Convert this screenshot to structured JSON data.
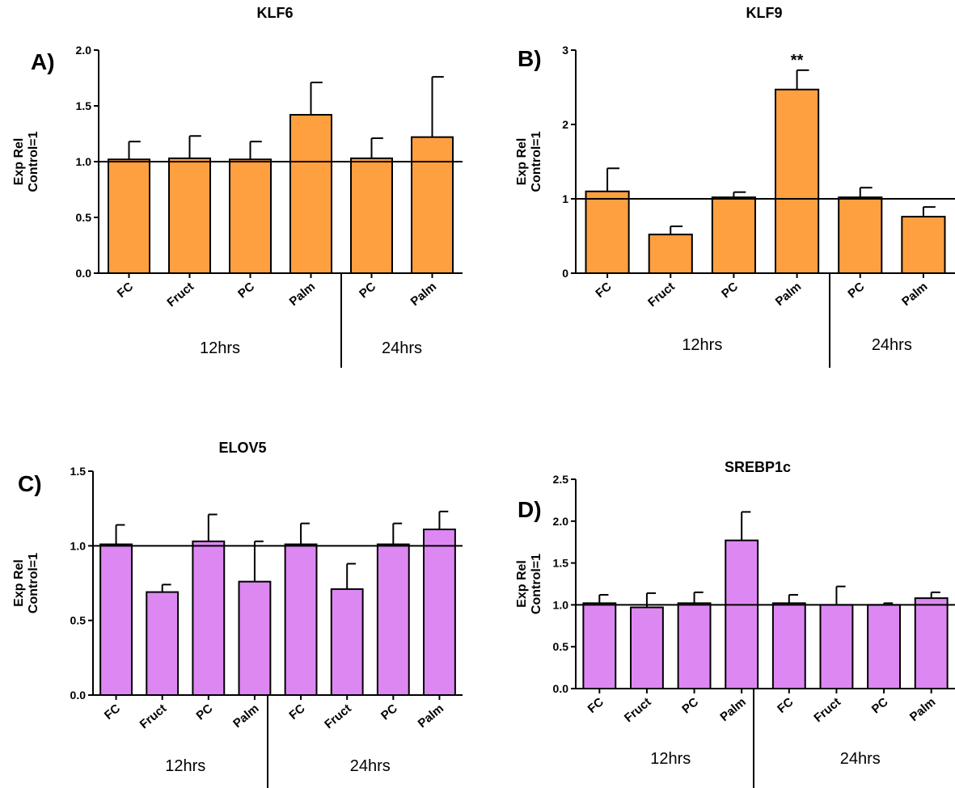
{
  "chart_data": [
    {
      "type": "bar",
      "panel": "A)",
      "title": "KLF6",
      "ylabel_lines": [
        "Exp Rel",
        "Control=1"
      ],
      "categories": [
        "FC",
        "Fruct",
        "PC",
        "Palm",
        "PC",
        "Palm"
      ],
      "groups": [
        "12hrs",
        "24hrs"
      ],
      "group_split_after": 4,
      "values": [
        1.02,
        1.03,
        1.02,
        1.42,
        1.03,
        1.22
      ],
      "errors": [
        0.16,
        0.2,
        0.16,
        0.29,
        0.18,
        0.54
      ],
      "ylim": [
        0,
        2.0
      ],
      "yticks": [
        "0.0",
        "0.5",
        "1.0",
        "1.5",
        "2.0"
      ],
      "reference_line": 1.0,
      "bar_color": "#ffa040",
      "annotations": []
    },
    {
      "type": "bar",
      "panel": "B)",
      "title": "KLF9",
      "ylabel_lines": [
        "Exp Rel",
        "Control=1"
      ],
      "categories": [
        "FC",
        "Fruct",
        "PC",
        "Palm",
        "PC",
        "Palm"
      ],
      "groups": [
        "12hrs",
        "24hrs"
      ],
      "group_split_after": 4,
      "values": [
        1.1,
        0.52,
        1.02,
        2.47,
        1.02,
        0.76
      ],
      "errors": [
        0.31,
        0.11,
        0.07,
        0.26,
        0.13,
        0.13
      ],
      "ylim": [
        0,
        3
      ],
      "yticks": [
        "0",
        "1",
        "2",
        "3"
      ],
      "reference_line": 1.0,
      "bar_color": "#ffa040",
      "annotations": [
        {
          "index": 3,
          "text": "**"
        }
      ]
    },
    {
      "type": "bar",
      "panel": "C)",
      "title": "ELOV5",
      "ylabel_lines": [
        "Exp Rel",
        "Control=1"
      ],
      "categories": [
        "FC",
        "Fruct",
        "PC",
        "Palm",
        "FC",
        "Fruct",
        "PC",
        "Palm"
      ],
      "groups": [
        "12hrs",
        "24hrs"
      ],
      "group_split_after": 4,
      "values": [
        1.01,
        0.69,
        1.03,
        0.76,
        1.01,
        0.71,
        1.01,
        1.11
      ],
      "errors": [
        0.13,
        0.05,
        0.18,
        0.27,
        0.14,
        0.17,
        0.14,
        0.12
      ],
      "ylim": [
        0,
        1.5
      ],
      "yticks": [
        "0.0",
        "0.5",
        "1.0",
        "1.5"
      ],
      "reference_line": 1.0,
      "bar_color": "#dd88f2",
      "annotations": []
    },
    {
      "type": "bar",
      "panel": "D)",
      "title": "SREBP1c",
      "ylabel_lines": [
        "Exp Rel",
        "Control=1"
      ],
      "categories": [
        "FC",
        "Fruct",
        "PC",
        "Palm",
        "FC",
        "Fruct",
        "PC",
        "Palm"
      ],
      "groups": [
        "12hrs",
        "24hrs"
      ],
      "group_split_after": 4,
      "values": [
        1.02,
        0.97,
        1.02,
        1.77,
        1.02,
        1.0,
        1.0,
        1.08
      ],
      "errors": [
        0.1,
        0.17,
        0.13,
        0.34,
        0.1,
        0.22,
        0.02,
        0.07
      ],
      "ylim": [
        0,
        2.5
      ],
      "yticks": [
        "0.0",
        "0.5",
        "1.0",
        "1.5",
        "2.0",
        "2.5"
      ],
      "reference_line": 1.0,
      "bar_color": "#dd88f2",
      "annotations": []
    }
  ]
}
